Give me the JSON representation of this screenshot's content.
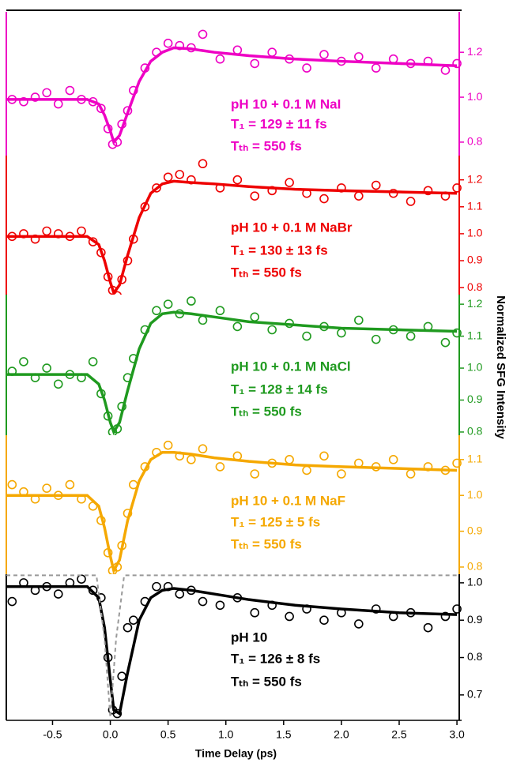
{
  "chart_data": [
    {
      "type": "scatter",
      "color": "#ee00c4",
      "xlim": [
        -0.9,
        3.02
      ],
      "ylim": [
        0.74,
        1.38
      ],
      "yticks": [
        0.8,
        {
          "value": 1,
          "label": "1.0"
        },
        1.2
      ],
      "annotations": [
        "pH 10 + 0.1 M NaI",
        "T₁ = 129 ± 11 fs",
        "Tₜₕ = 550 fs"
      ],
      "series": [
        {
          "color": "#ee00c4",
          "type": "scatter",
          "x": [
            -0.85,
            -0.75,
            -0.65,
            -0.55,
            -0.45,
            -0.35,
            -0.25,
            -0.15,
            -0.08,
            -0.02,
            0.02,
            0.06,
            0.1,
            0.15,
            0.2,
            0.3,
            0.4,
            0.5,
            0.6,
            0.7,
            0.8,
            0.95,
            1.1,
            1.25,
            1.4,
            1.55,
            1.7,
            1.85,
            2.0,
            2.15,
            2.3,
            2.45,
            2.6,
            2.75,
            2.9,
            3.0
          ],
          "values": [
            0.99,
            0.98,
            1.0,
            1.02,
            0.97,
            1.03,
            0.99,
            0.98,
            0.95,
            0.86,
            0.79,
            0.8,
            0.88,
            0.94,
            1.03,
            1.13,
            1.2,
            1.24,
            1.23,
            1.22,
            1.28,
            1.17,
            1.21,
            1.15,
            1.2,
            1.17,
            1.13,
            1.19,
            1.16,
            1.18,
            1.13,
            1.17,
            1.15,
            1.16,
            1.12,
            1.15
          ]
        },
        {
          "color": "#ee00c4",
          "type": "line",
          "x": [
            -0.9,
            -0.2,
            -0.1,
            -0.05,
            0,
            0.03,
            0.08,
            0.15,
            0.25,
            0.35,
            0.45,
            0.55,
            0.7,
            0.9,
            1.2,
            1.6,
            2.0,
            2.5,
            3.0
          ],
          "values": [
            0.99,
            0.99,
            0.97,
            0.92,
            0.85,
            0.8,
            0.83,
            0.93,
            1.07,
            1.16,
            1.2,
            1.22,
            1.215,
            1.2,
            1.185,
            1.17,
            1.16,
            1.15,
            1.14
          ]
        }
      ]
    },
    {
      "type": "scatter",
      "color": "#ee0000",
      "xlim": [
        -0.9,
        3.02
      ],
      "ylim": [
        0.774,
        1.29
      ],
      "yticks": [
        0.8,
        0.9,
        {
          "value": 1,
          "label": "1.0"
        },
        1.1,
        1.2
      ],
      "annotations": [
        "pH 10 + 0.1 M NaBr",
        "T₁ = 130 ± 13 fs",
        "Tₜₕ = 550 fs"
      ],
      "series": [
        {
          "color": "#ee0000",
          "type": "scatter",
          "x": [
            -0.85,
            -0.75,
            -0.65,
            -0.55,
            -0.45,
            -0.35,
            -0.25,
            -0.15,
            -0.08,
            -0.02,
            0.02,
            0.06,
            0.1,
            0.15,
            0.2,
            0.3,
            0.4,
            0.5,
            0.6,
            0.7,
            0.8,
            0.95,
            1.1,
            1.25,
            1.4,
            1.55,
            1.7,
            1.85,
            2.0,
            2.15,
            2.3,
            2.45,
            2.6,
            2.75,
            2.9,
            3.0
          ],
          "values": [
            0.99,
            1.0,
            0.98,
            1.01,
            1.0,
            0.99,
            1.01,
            0.97,
            0.93,
            0.84,
            0.79,
            0.77,
            0.83,
            0.9,
            0.98,
            1.1,
            1.17,
            1.21,
            1.22,
            1.2,
            1.26,
            1.17,
            1.2,
            1.14,
            1.16,
            1.19,
            1.15,
            1.13,
            1.17,
            1.14,
            1.18,
            1.15,
            1.12,
            1.16,
            1.14,
            1.17
          ]
        },
        {
          "color": "#ee0000",
          "type": "line",
          "x": [
            -0.9,
            -0.2,
            -0.1,
            -0.05,
            0,
            0.03,
            0.08,
            0.15,
            0.25,
            0.35,
            0.45,
            0.55,
            0.7,
            0.9,
            1.2,
            1.6,
            2.0,
            2.5,
            3.0
          ],
          "values": [
            0.99,
            0.99,
            0.96,
            0.9,
            0.82,
            0.78,
            0.81,
            0.92,
            1.06,
            1.15,
            1.185,
            1.195,
            1.19,
            1.185,
            1.175,
            1.165,
            1.16,
            1.155,
            1.15
          ]
        }
      ]
    },
    {
      "type": "scatter",
      "color": "#1f9a1f",
      "xlim": [
        -0.9,
        3.02
      ],
      "ylim": [
        0.79,
        1.23
      ],
      "yticks": [
        0.8,
        0.9,
        {
          "value": 1,
          "label": "1.0"
        },
        1.1,
        1.2
      ],
      "annotations": [
        "pH 10 + 0.1 M NaCl",
        "T₁ = 128 ± 14 fs",
        "Tₜₕ = 550 fs"
      ],
      "series": [
        {
          "color": "#1f9a1f",
          "type": "scatter",
          "x": [
            -0.85,
            -0.75,
            -0.65,
            -0.55,
            -0.45,
            -0.35,
            -0.25,
            -0.15,
            -0.08,
            -0.02,
            0.02,
            0.06,
            0.1,
            0.15,
            0.2,
            0.3,
            0.4,
            0.5,
            0.6,
            0.7,
            0.8,
            0.95,
            1.1,
            1.25,
            1.4,
            1.55,
            1.7,
            1.85,
            2.0,
            2.15,
            2.3,
            2.45,
            2.6,
            2.75,
            2.9,
            3.0
          ],
          "values": [
            0.99,
            1.02,
            0.97,
            1.0,
            0.95,
            0.98,
            0.97,
            1.02,
            0.92,
            0.85,
            0.8,
            0.81,
            0.88,
            0.97,
            1.03,
            1.12,
            1.18,
            1.2,
            1.17,
            1.21,
            1.15,
            1.18,
            1.13,
            1.16,
            1.12,
            1.14,
            1.1,
            1.13,
            1.11,
            1.15,
            1.09,
            1.12,
            1.1,
            1.13,
            1.08,
            1.11
          ]
        },
        {
          "color": "#1f9a1f",
          "type": "line",
          "x": [
            -0.9,
            -0.2,
            -0.1,
            -0.05,
            0,
            0.03,
            0.08,
            0.15,
            0.25,
            0.35,
            0.45,
            0.55,
            0.7,
            0.9,
            1.2,
            1.6,
            2.0,
            2.5,
            3.0
          ],
          "values": [
            0.98,
            0.98,
            0.95,
            0.9,
            0.83,
            0.8,
            0.83,
            0.93,
            1.06,
            1.14,
            1.17,
            1.175,
            1.17,
            1.16,
            1.145,
            1.135,
            1.125,
            1.12,
            1.115
          ]
        }
      ]
    },
    {
      "type": "scatter",
      "color": "#f5a800",
      "xlim": [
        -0.9,
        3.02
      ],
      "ylim": [
        0.78,
        1.168
      ],
      "yticks": [
        0.8,
        0.9,
        {
          "value": 1,
          "label": "1.0"
        },
        1.1
      ],
      "annotations": [
        "pH 10 + 0.1 M NaF",
        "T₁ = 125 ± 5 fs",
        "Tₜₕ = 550 fs"
      ],
      "series": [
        {
          "color": "#f5a800",
          "type": "scatter",
          "x": [
            -0.85,
            -0.75,
            -0.65,
            -0.55,
            -0.45,
            -0.35,
            -0.25,
            -0.15,
            -0.08,
            -0.02,
            0.02,
            0.06,
            0.1,
            0.15,
            0.2,
            0.3,
            0.4,
            0.5,
            0.6,
            0.7,
            0.8,
            0.95,
            1.1,
            1.25,
            1.4,
            1.55,
            1.7,
            1.85,
            2.0,
            2.15,
            2.3,
            2.45,
            2.6,
            2.75,
            2.9,
            3.0
          ],
          "values": [
            1.03,
            1.01,
            0.99,
            1.02,
            1.0,
            1.03,
            0.99,
            0.97,
            0.93,
            0.84,
            0.79,
            0.8,
            0.86,
            0.95,
            1.03,
            1.08,
            1.12,
            1.14,
            1.11,
            1.1,
            1.13,
            1.08,
            1.11,
            1.06,
            1.09,
            1.1,
            1.07,
            1.11,
            1.06,
            1.09,
            1.08,
            1.1,
            1.06,
            1.08,
            1.07,
            1.09
          ]
        },
        {
          "color": "#f5a800",
          "type": "line",
          "x": [
            -0.9,
            -0.2,
            -0.1,
            -0.05,
            0,
            0.03,
            0.08,
            0.15,
            0.25,
            0.35,
            0.45,
            0.55,
            0.7,
            0.9,
            1.2,
            1.6,
            2.0,
            2.5,
            3.0
          ],
          "values": [
            1.0,
            1.0,
            0.97,
            0.91,
            0.83,
            0.79,
            0.82,
            0.93,
            1.04,
            1.1,
            1.12,
            1.12,
            1.115,
            1.105,
            1.095,
            1.085,
            1.08,
            1.075,
            1.07
          ]
        }
      ]
    },
    {
      "type": "scatter",
      "color": "#000000",
      "xlim": [
        -0.9,
        3.02
      ],
      "ylim": [
        0.632,
        1.023
      ],
      "yticks": [
        0.7,
        0.8,
        0.9,
        {
          "value": 1,
          "label": "1.0"
        }
      ],
      "xticks": [
        -0.5,
        {
          "value": 0,
          "label": "0.0"
        },
        0.5,
        {
          "value": 1,
          "label": "1.0"
        },
        1.5,
        {
          "value": 2,
          "label": "2.0"
        },
        2.5,
        {
          "value": 3,
          "label": "3.0"
        }
      ],
      "xlabel": "Time Delay (ps)",
      "ylabel": "Normalized SFG Intensity",
      "annotations": [
        "pH 10",
        "T₁ = 126 ± 8 fs",
        "Tₜₕ = 550 fs"
      ],
      "series": [
        {
          "color": "#000000",
          "type": "scatter",
          "x": [
            -0.85,
            -0.75,
            -0.65,
            -0.55,
            -0.45,
            -0.35,
            -0.25,
            -0.15,
            -0.08,
            -0.02,
            0.02,
            0.06,
            0.1,
            0.15,
            0.2,
            0.3,
            0.4,
            0.5,
            0.6,
            0.7,
            0.8,
            0.95,
            1.1,
            1.25,
            1.4,
            1.55,
            1.7,
            1.85,
            2.0,
            2.15,
            2.3,
            2.45,
            2.6,
            2.75,
            2.9,
            3.0
          ],
          "values": [
            0.95,
            1.0,
            0.98,
            0.99,
            0.97,
            1.0,
            1.01,
            0.98,
            0.96,
            0.8,
            0.66,
            0.65,
            0.75,
            0.88,
            0.9,
            0.95,
            0.99,
            0.99,
            0.97,
            0.98,
            0.95,
            0.94,
            0.96,
            0.92,
            0.94,
            0.91,
            0.93,
            0.9,
            0.92,
            0.89,
            0.93,
            0.91,
            0.92,
            0.88,
            0.91,
            0.93
          ]
        },
        {
          "color": "#000000",
          "type": "line",
          "x": [
            -0.9,
            -0.2,
            -0.1,
            -0.05,
            0,
            0.03,
            0.08,
            0.15,
            0.25,
            0.35,
            0.45,
            0.55,
            0.7,
            0.9,
            1.2,
            1.6,
            2.0,
            2.5,
            3.0
          ],
          "values": [
            0.99,
            0.99,
            0.96,
            0.88,
            0.74,
            0.66,
            0.65,
            0.76,
            0.9,
            0.96,
            0.98,
            0.985,
            0.98,
            0.97,
            0.955,
            0.94,
            0.93,
            0.92,
            0.915
          ]
        },
        {
          "color": "#999999",
          "type": "line",
          "dash": true,
          "x": [
            -0.9,
            -0.12,
            -0.05,
            0,
            0.05,
            0.12,
            3.0
          ],
          "values": [
            1.02,
            1.02,
            0.85,
            0.64,
            0.85,
            1.02,
            1.02
          ]
        }
      ]
    }
  ]
}
